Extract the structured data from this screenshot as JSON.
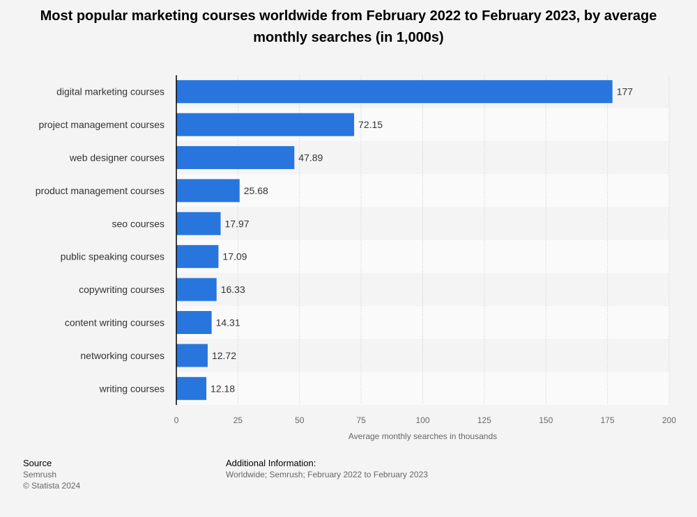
{
  "chart_data": {
    "type": "bar",
    "orientation": "horizontal",
    "title": "Most popular marketing courses worldwide from February 2022 to February 2023, by average monthly searches (in 1,000s)",
    "xlabel": "Average monthly searches in thousands",
    "ylabel": "",
    "xlim": [
      0,
      200
    ],
    "xticks": [
      "0",
      "25",
      "50",
      "75",
      "100",
      "125",
      "150",
      "175",
      "200"
    ],
    "categories": [
      "digital marketing courses",
      "project management courses",
      "web designer courses",
      "product management courses",
      "seo courses",
      "public speaking courses",
      "copywriting courses",
      "content writing courses",
      "networking courses",
      "writing courses"
    ],
    "values": [
      177,
      72.15,
      47.89,
      25.68,
      17.97,
      17.09,
      16.33,
      14.31,
      12.72,
      12.18
    ],
    "value_labels": [
      "177",
      "72.15",
      "47.89",
      "25.68",
      "17.97",
      "17.09",
      "16.33",
      "14.31",
      "12.72",
      "12.18"
    ],
    "bar_color": "#2876dd",
    "grid": true
  },
  "footer": {
    "source_heading": "Source",
    "source_name": "Semrush",
    "copyright": "© Statista 2024",
    "info_heading": "Additional Information:",
    "info_text": "Worldwide; Semrush; February 2022 to February 2023"
  }
}
